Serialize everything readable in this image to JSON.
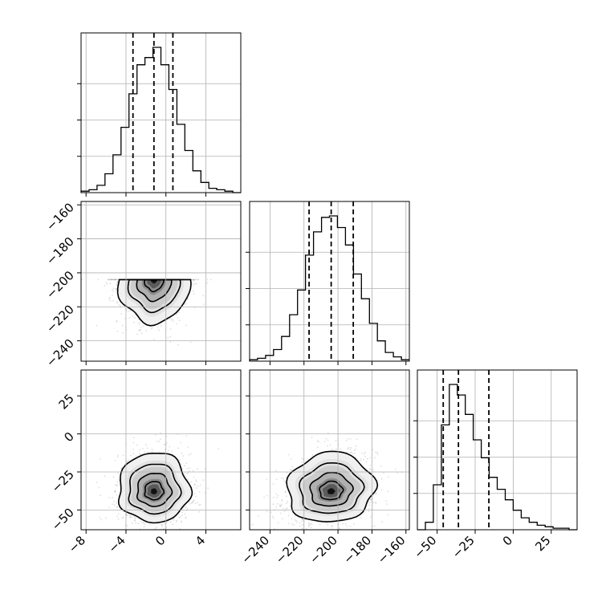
{
  "chart_data": {
    "type": "corner",
    "parameters": [
      {
        "range": [
          -8.5,
          7.5
        ],
        "ticks": [
          -8,
          -4,
          0,
          4
        ],
        "tick_labels": [
          "−8",
          "−4",
          "0",
          "4"
        ],
        "quantiles": [
          -3.3,
          -1.2,
          0.7
        ]
      },
      {
        "range": [
          -252,
          -158
        ],
        "ticks": [
          -240,
          -220,
          -200,
          -180,
          -160
        ],
        "tick_labels": [
          "−240",
          "−220",
          "−200",
          "−180",
          "−160"
        ],
        "quantiles": [
          -217,
          -204,
          -191
        ]
      },
      {
        "range": [
          -63,
          42
        ],
        "ticks": [
          -50,
          -25,
          0,
          25
        ],
        "tick_labels": [
          "−50",
          "−25",
          "0",
          "25"
        ],
        "quantiles": [
          -46,
          -36,
          -16
        ]
      }
    ],
    "histograms": [
      {
        "edges_start": -8.5,
        "bin_width": 0.8,
        "counts": [
          1,
          2,
          5,
          13,
          26,
          45,
          68,
          88,
          93,
          100,
          88,
          71,
          47,
          29,
          15,
          7,
          3,
          2,
          1,
          0
        ]
      },
      {
        "edges_start": -252,
        "bin_width": 4.7,
        "counts": [
          1,
          2,
          4,
          8,
          17,
          32,
          49,
          73,
          89,
          99,
          100,
          92,
          80,
          60,
          43,
          26,
          14,
          6,
          3,
          1
        ]
      },
      {
        "edges_start": -63,
        "bin_width": 5.25,
        "counts": [
          0,
          5,
          30,
          70,
          97,
          90,
          77,
          60,
          48,
          35,
          27,
          20,
          13,
          8,
          5,
          3,
          2,
          1,
          1,
          0
        ]
      }
    ],
    "pairs": [
      {
        "x_param": 0,
        "y_param": 1,
        "center": [
          -1.2,
          -204
        ],
        "spread": [
          1.7,
          12.2
        ],
        "correlation": 0.0,
        "skew_y": 0.0
      },
      {
        "x_param": 0,
        "y_param": 2,
        "center": [
          -1.2,
          -38
        ],
        "spread": [
          1.7,
          9.5
        ],
        "correlation": 0.0,
        "skew_y": 1.3
      },
      {
        "x_param": 1,
        "y_param": 2,
        "center": [
          -204,
          -38
        ],
        "spread": [
          12.2,
          9.5
        ],
        "correlation": 0.2,
        "skew_y": 1.3
      }
    ],
    "grid": true
  }
}
